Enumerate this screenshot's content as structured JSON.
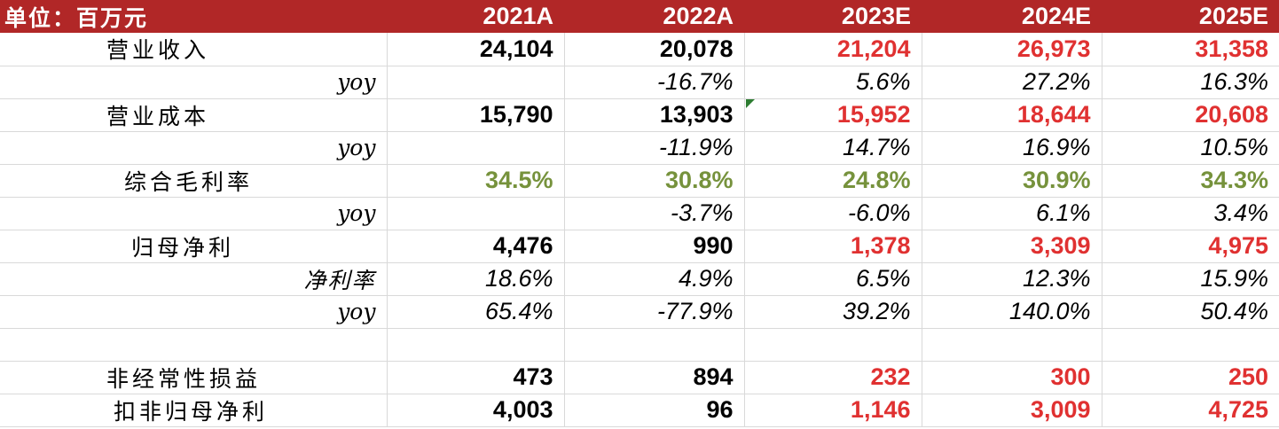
{
  "header": {
    "unit": "单位：百万元",
    "years": [
      "2021A",
      "2022A",
      "2023E",
      "2024E",
      "2025E"
    ]
  },
  "rows": [
    {
      "label": "营业收入",
      "values": [
        "24,104",
        "20,078",
        "21,204",
        "26,973",
        "31,358"
      ]
    },
    {
      "label": "yoy",
      "values": [
        "",
        "-16.7%",
        "5.6%",
        "27.2%",
        "16.3%"
      ]
    },
    {
      "label": "营业成本",
      "values": [
        "15,790",
        "13,903",
        "15,952",
        "18,644",
        "20,608"
      ]
    },
    {
      "label": "yoy",
      "values": [
        "",
        "-11.9%",
        "14.7%",
        "16.9%",
        "10.5%"
      ]
    },
    {
      "label": "综合毛利率",
      "values": [
        "34.5%",
        "30.8%",
        "24.8%",
        "30.9%",
        "34.3%"
      ]
    },
    {
      "label": "yoy",
      "values": [
        "",
        "-3.7%",
        "-6.0%",
        "6.1%",
        "3.4%"
      ]
    },
    {
      "label": "归母净利",
      "values": [
        "4,476",
        "990",
        "1,378",
        "3,309",
        "4,975"
      ]
    },
    {
      "label": "净利率",
      "values": [
        "18.6%",
        "4.9%",
        "6.5%",
        "12.3%",
        "15.9%"
      ]
    },
    {
      "label": "yoy",
      "values": [
        "65.4%",
        "-77.9%",
        "39.2%",
        "140.0%",
        "50.4%"
      ]
    },
    {
      "label": "",
      "values": [
        "",
        "",
        "",
        "",
        ""
      ]
    },
    {
      "label": "非经常性损益",
      "values": [
        "473",
        "894",
        "232",
        "300",
        "250"
      ]
    },
    {
      "label": "扣非归母净利",
      "values": [
        "4,003",
        "96",
        "1,146",
        "3,009",
        "4,725"
      ]
    }
  ],
  "colors": {
    "header_bg": "#b12727",
    "forecast_red": "#e03131",
    "margin_green": "#76923c",
    "gridline": "#d9d9d9"
  }
}
